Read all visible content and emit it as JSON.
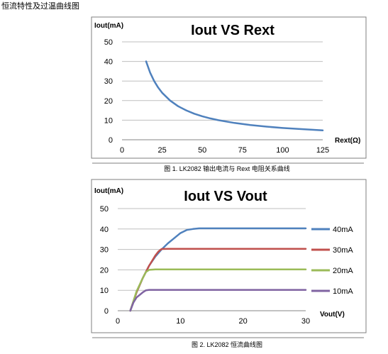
{
  "page": {
    "heading": "恒流特性及过温曲线图"
  },
  "chart_data": [
    {
      "type": "line",
      "title": "Iout VS Rext",
      "ylabel": "Iout(mA)",
      "xlabel": "Rext(Ω)",
      "xlim": [
        0,
        125
      ],
      "ylim": [
        0,
        50
      ],
      "x_ticks": [
        "0",
        "25",
        "50",
        "75",
        "100",
        "125"
      ],
      "y_ticks": [
        "0",
        "10",
        "20",
        "30",
        "40",
        "50"
      ],
      "grid": "horizontal",
      "legend": "none",
      "series": [
        {
          "color": "#4f81bd",
          "x": [
            15,
            17.5,
            20,
            22.5,
            25,
            30,
            35,
            40,
            45,
            50,
            55,
            60,
            70,
            80,
            90,
            100,
            110,
            125
          ],
          "y": [
            40,
            34.3,
            30,
            26.7,
            24,
            20,
            17.1,
            15,
            13.3,
            12,
            10.9,
            10,
            8.6,
            7.5,
            6.7,
            6,
            5.5,
            4.8
          ]
        }
      ],
      "caption": "图 1. LK2082 输出电流与 Rext 电阻关系曲线"
    },
    {
      "type": "line",
      "title": "Iout VS Vout",
      "ylabel": "Iout(mA)",
      "xlabel": "Vout(V)",
      "xlim": [
        0,
        30
      ],
      "ylim": [
        0,
        50
      ],
      "x_ticks": [
        "0",
        "10",
        "20",
        "30"
      ],
      "y_ticks": [
        "0",
        "10",
        "20",
        "30",
        "40",
        "50"
      ],
      "grid": "horizontal",
      "legend": "right",
      "series": [
        {
          "name": "40mA",
          "color": "#4f81bd",
          "x": [
            2,
            3,
            4,
            5,
            6,
            7,
            8,
            9,
            10,
            11,
            12,
            13,
            15,
            30
          ],
          "y": [
            0,
            9,
            16,
            22,
            26.5,
            30,
            33,
            35.5,
            38,
            39.5,
            40,
            40.3,
            40.3,
            40.3
          ]
        },
        {
          "name": "30mA",
          "color": "#c0504d",
          "x": [
            2,
            3,
            4,
            5,
            6,
            6.5,
            7,
            8,
            30
          ],
          "y": [
            0,
            9,
            16,
            22,
            27,
            29,
            30.2,
            30.3,
            30.3
          ]
        },
        {
          "name": "20mA",
          "color": "#9bbb59",
          "x": [
            2,
            3,
            4,
            4.5,
            5,
            6,
            30
          ],
          "y": [
            0,
            9.5,
            16,
            19,
            20,
            20.2,
            20.2
          ]
        },
        {
          "name": "10mA",
          "color": "#8064a2",
          "x": [
            2,
            2.5,
            3,
            4,
            4.5,
            5,
            30
          ],
          "y": [
            0,
            4,
            6.5,
            9,
            10,
            10.2,
            10.2
          ]
        }
      ],
      "caption": "图 2. LK2082 恒流曲线图"
    }
  ]
}
